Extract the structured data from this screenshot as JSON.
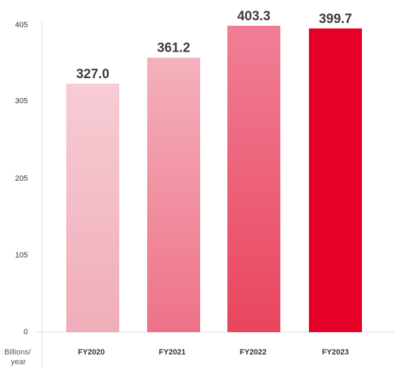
{
  "chart_data": {
    "type": "bar",
    "categories": [
      "FY2020",
      "FY2021",
      "FY2022",
      "FY2023"
    ],
    "values": [
      327.0,
      361.2,
      403.3,
      399.7
    ],
    "value_labels": [
      "327.0",
      "361.2",
      "403.3",
      "399.7"
    ],
    "yticks": [
      "0",
      "105",
      "205",
      "305",
      "405"
    ],
    "ylim": [
      0,
      405
    ],
    "unit_label_line1": "Billions/",
    "unit_label_line2": "year",
    "grid": false,
    "colors": {
      "FY2020": [
        "#f7ccd4",
        "#efadb9"
      ],
      "FY2021": [
        "#f4b1bc",
        "#ee7187"
      ],
      "FY2022": [
        "#f07f96",
        "#e8455d"
      ],
      "FY2023": [
        "#e60026",
        "#e60026"
      ]
    }
  }
}
